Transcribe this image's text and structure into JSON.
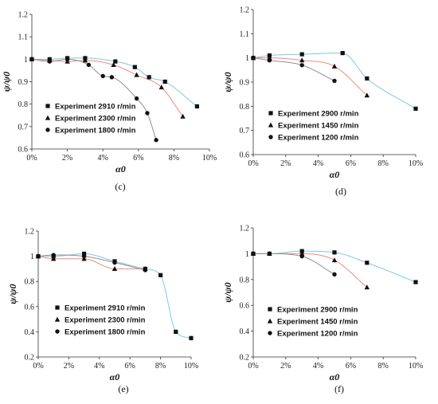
{
  "chart_data": [
    {
      "type": "scatter",
      "panel_label": "(c)",
      "xlabel": "α0",
      "ylabel": "ψ/ψ0",
      "xlim": [
        0,
        10
      ],
      "ylim": [
        0.6,
        1.2
      ],
      "xticks": [
        0,
        2,
        4,
        6,
        8,
        10
      ],
      "xtick_labels": [
        "0%",
        "2%",
        "4%",
        "6%",
        "8%",
        "10%"
      ],
      "yticks": [
        0.6,
        0.7,
        0.8,
        0.9,
        1.0,
        1.1,
        1.2
      ],
      "ytick_labels": [
        "0.6",
        "0.7",
        "0.8",
        "0.9",
        "1",
        "1.1",
        "1.2"
      ],
      "legend_position": "bottom-left",
      "grid": false,
      "series": [
        {
          "name": "Experiment 2910 r/min",
          "marker": "square",
          "curve_color": "#7ec8e6",
          "x": [
            0,
            1,
            2,
            3,
            4.7,
            5.8,
            6.6,
            7.5,
            9.3
          ],
          "y": [
            1.0,
            1.0,
            1.005,
            1.005,
            0.99,
            0.965,
            0.92,
            0.9,
            0.79
          ]
        },
        {
          "name": "Experiment 2300 r/min",
          "marker": "triangle",
          "curve_color": "#f08a7a",
          "x": [
            0,
            1,
            2,
            3,
            4.6,
            5.9,
            7.3,
            8.5
          ],
          "y": [
            1.0,
            0.995,
            0.99,
            0.995,
            0.975,
            0.93,
            0.875,
            0.745
          ]
        },
        {
          "name": "Experiment 1800 r/min",
          "marker": "circle",
          "curve_color": "#909090",
          "x": [
            0,
            1,
            2,
            3.2,
            4,
            4.5,
            5.9,
            6.5,
            7
          ],
          "y": [
            1.0,
            0.99,
            1.0,
            0.975,
            0.925,
            0.92,
            0.825,
            0.76,
            0.64
          ]
        }
      ]
    },
    {
      "type": "scatter",
      "panel_label": "(d)",
      "xlabel": "α0",
      "ylabel": "ψ/ψ0",
      "xlim": [
        0,
        10
      ],
      "ylim": [
        0.6,
        1.2
      ],
      "xticks": [
        0,
        2,
        4,
        6,
        8,
        10
      ],
      "xtick_labels": [
        "0%",
        "2%",
        "4%",
        "6%",
        "8%",
        "10%"
      ],
      "yticks": [
        0.6,
        0.7,
        0.8,
        0.9,
        1.0,
        1.1,
        1.2
      ],
      "ytick_labels": [
        "0.6",
        "0.7",
        "0.8",
        "0.9",
        "1",
        "1.1",
        "1.2"
      ],
      "legend_position": "bottom-left",
      "grid": false,
      "series": [
        {
          "name": "Experiment 2900 r/min",
          "marker": "square",
          "curve_color": "#7ec8e6",
          "x": [
            0,
            1,
            3,
            5.5,
            7,
            10
          ],
          "y": [
            1.0,
            1.01,
            1.015,
            1.02,
            0.915,
            0.79
          ]
        },
        {
          "name": "Experiment 1450 r/min",
          "marker": "triangle",
          "curve_color": "#f08a7a",
          "x": [
            0,
            1,
            3,
            5,
            7
          ],
          "y": [
            1.0,
            1.0,
            0.99,
            0.965,
            0.845
          ]
        },
        {
          "name": "Experiment 1200 r/min",
          "marker": "circle",
          "curve_color": "#909090",
          "x": [
            0,
            1,
            3,
            5
          ],
          "y": [
            1.0,
            0.99,
            0.97,
            0.905
          ]
        }
      ]
    },
    {
      "type": "scatter",
      "panel_label": "(e)",
      "xlabel": "α0",
      "ylabel": "ψ/ψ0",
      "xlim": [
        0,
        10
      ],
      "ylim": [
        0.2,
        1.2
      ],
      "xticks": [
        0,
        2,
        4,
        6,
        8,
        10
      ],
      "xtick_labels": [
        "0%",
        "2%",
        "4%",
        "6%",
        "8%",
        "10%"
      ],
      "yticks": [
        0.2,
        0.4,
        0.6,
        0.8,
        1.0,
        1.2
      ],
      "ytick_labels": [
        "0.2",
        "0.4",
        "0.6",
        "0.8",
        "1",
        "1.2"
      ],
      "legend_position": "bottom-left",
      "grid": false,
      "series": [
        {
          "name": "Experiment 2910 r/min",
          "marker": "square",
          "curve_color": "#7ec8e6",
          "x": [
            0,
            1,
            3,
            5,
            7,
            8,
            9,
            10
          ],
          "y": [
            1.0,
            1.0,
            1.02,
            0.96,
            0.9,
            0.85,
            0.4,
            0.35
          ]
        },
        {
          "name": "Experiment 2300 r/min",
          "marker": "triangle",
          "curve_color": "#f08a7a",
          "x": [
            0,
            1,
            3,
            5,
            7
          ],
          "y": [
            1.0,
            0.98,
            0.98,
            0.9,
            0.9
          ]
        },
        {
          "name": "Experiment 1800 r/min",
          "marker": "circle",
          "curve_color": "#909090",
          "x": [
            0,
            1,
            3,
            5,
            7
          ],
          "y": [
            1.0,
            1.01,
            1.0,
            0.95,
            0.89
          ]
        }
      ]
    },
    {
      "type": "scatter",
      "panel_label": "(f)",
      "xlabel": "α0",
      "ylabel": "ψ/ψ0",
      "xlim": [
        0,
        10
      ],
      "ylim": [
        0.2,
        1.2
      ],
      "xticks": [
        0,
        2,
        4,
        6,
        8,
        10
      ],
      "xtick_labels": [
        "0%",
        "2%",
        "4%",
        "6%",
        "8%",
        "10%"
      ],
      "yticks": [
        0.2,
        0.4,
        0.6,
        0.8,
        1.0,
        1.2
      ],
      "ytick_labels": [
        "0.2",
        "0.4",
        "0.6",
        "0.8",
        "1",
        "1.2"
      ],
      "legend_position": "bottom-left",
      "grid": false,
      "series": [
        {
          "name": "Experiment 2900 r/min",
          "marker": "square",
          "curve_color": "#7ec8e6",
          "x": [
            0,
            1,
            3,
            5,
            7,
            10
          ],
          "y": [
            1.0,
            1.0,
            1.02,
            1.01,
            0.93,
            0.78
          ]
        },
        {
          "name": "Experiment 1450 r/min",
          "marker": "triangle",
          "curve_color": "#f08a7a",
          "x": [
            0,
            1,
            3,
            5,
            7
          ],
          "y": [
            1.0,
            1.0,
            1.0,
            0.95,
            0.74
          ]
        },
        {
          "name": "Experiment 1200 r/min",
          "marker": "circle",
          "curve_color": "#909090",
          "x": [
            0,
            1,
            3,
            5
          ],
          "y": [
            1.0,
            1.0,
            0.98,
            0.84
          ]
        }
      ]
    }
  ]
}
